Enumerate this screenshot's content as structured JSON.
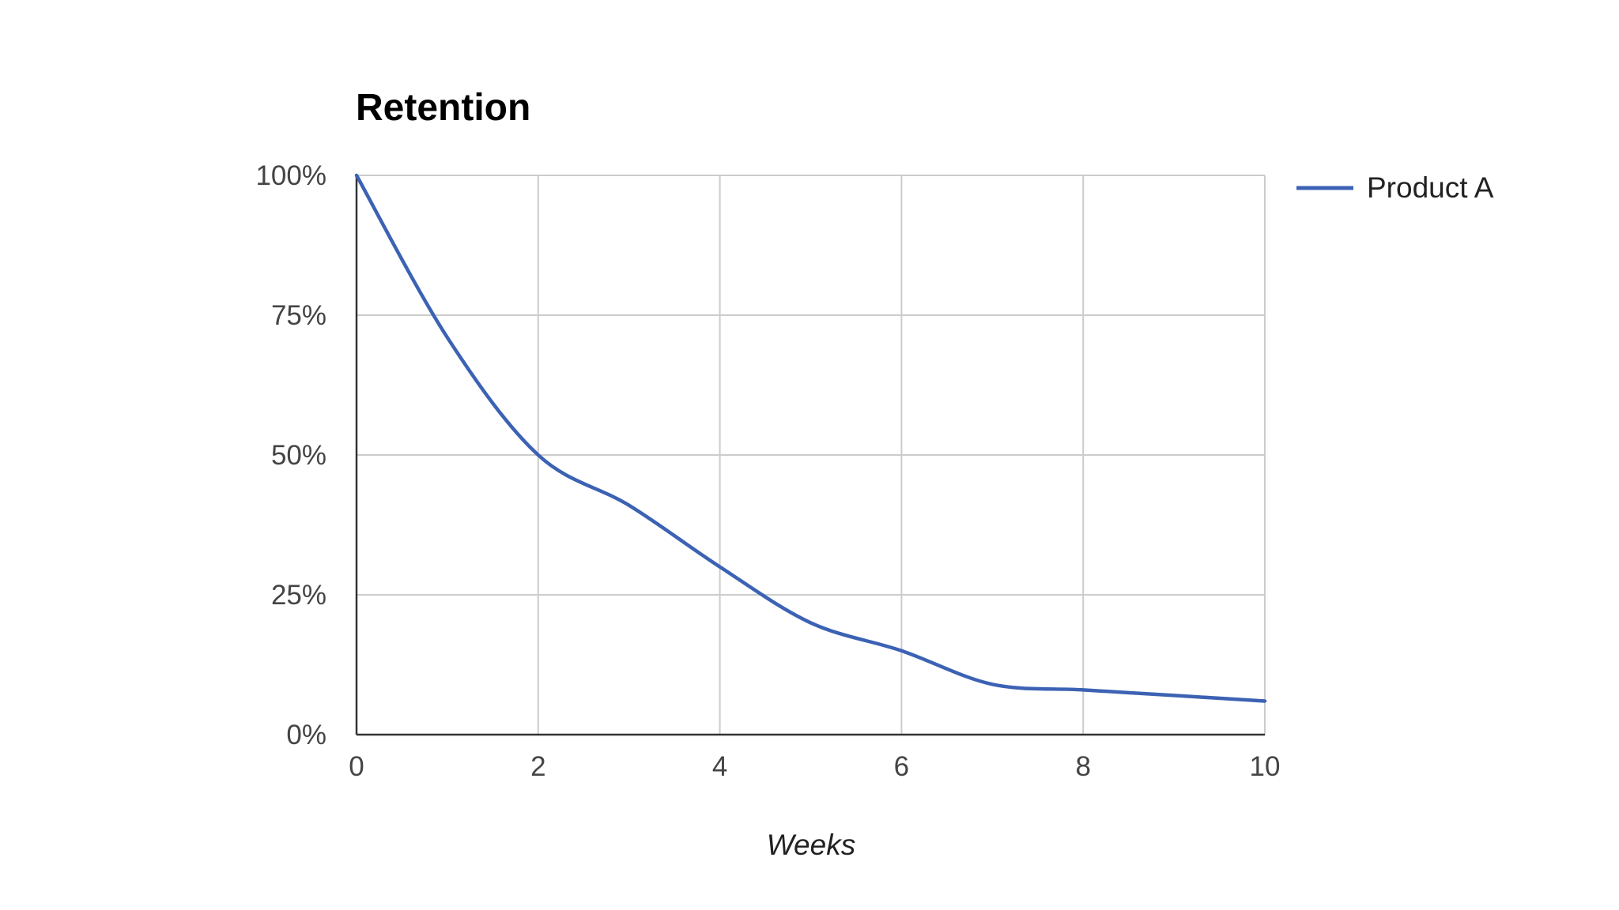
{
  "chart_data": {
    "type": "line",
    "title": "Retention",
    "xlabel": "Weeks",
    "ylabel": "",
    "xlim": [
      0,
      10
    ],
    "ylim": [
      0,
      100
    ],
    "x_ticks": [
      0,
      2,
      4,
      6,
      8,
      10
    ],
    "x_tick_labels": [
      "0",
      "2",
      "4",
      "6",
      "8",
      "10"
    ],
    "y_ticks": [
      0,
      25,
      50,
      75,
      100
    ],
    "y_tick_labels": [
      "0%",
      "25%",
      "50%",
      "75%",
      "100%"
    ],
    "grid": true,
    "legend": "right",
    "series": [
      {
        "name": "Product A",
        "color": "#3c62b4",
        "x": [
          0,
          1,
          2,
          3,
          4,
          5,
          6,
          7,
          8,
          9,
          10
        ],
        "y": [
          100,
          71,
          50,
          41,
          30,
          20,
          15,
          9,
          8,
          7,
          6
        ]
      }
    ]
  }
}
